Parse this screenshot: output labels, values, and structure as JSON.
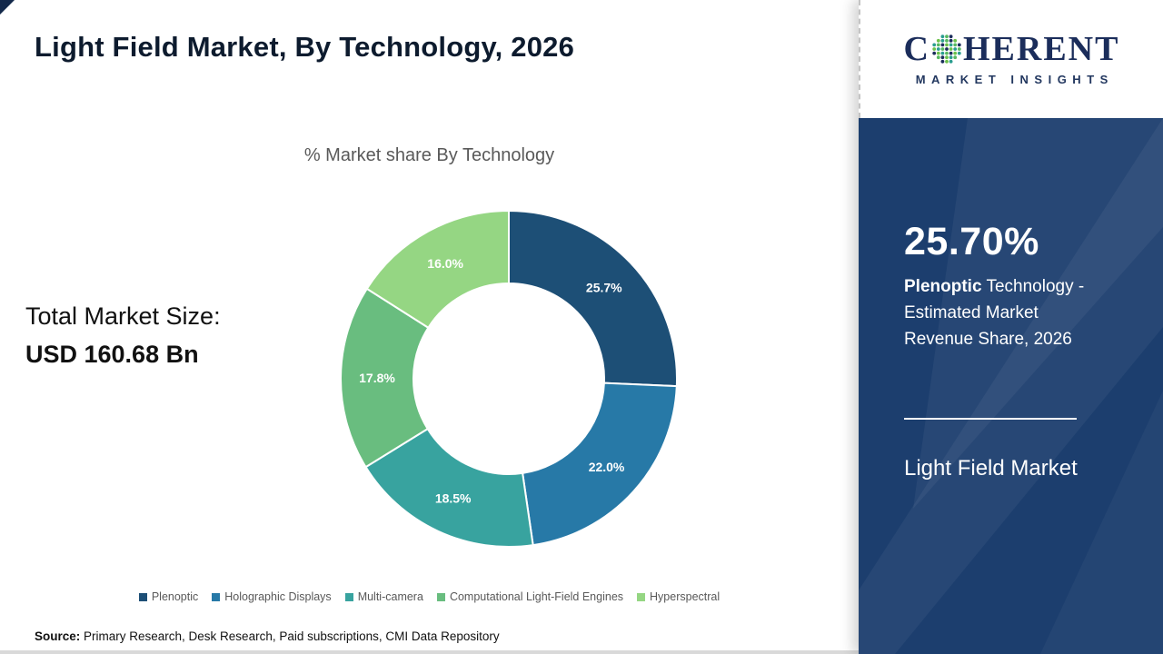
{
  "page": {
    "title": "Light Field Market, By Technology, 2026",
    "source": {
      "label": "Source:",
      "text": " Primary Research, Desk Research, Paid subscriptions, CMI Data Repository"
    }
  },
  "left_panel": {
    "total_market_label": "Total Market Size:",
    "total_market_value": "USD 160.68 Bn"
  },
  "chart_data": {
    "type": "pie",
    "subtype": "donut",
    "title": "% Market share By Technology",
    "categories": [
      "Plenoptic",
      "Holographic Displays",
      "Multi-camera",
      "Computational Light-Field Engines",
      "Hyperspectral"
    ],
    "values": [
      25.7,
      22.0,
      18.5,
      17.8,
      16.0
    ],
    "labels": [
      "25.7%",
      "22.0%",
      "18.5%",
      "17.8%",
      "16.0%"
    ],
    "colors": [
      "#1d4f76",
      "#2779a7",
      "#38a39f",
      "#69bd7f",
      "#95d683"
    ],
    "start_angle_deg": 0,
    "direction": "clockwise",
    "legend_position": "bottom"
  },
  "sidebar": {
    "logo": {
      "brand_first": "C",
      "brand_rest": "HERENT",
      "tagline": "MARKET INSIGHTS"
    },
    "stat_value": "25.70%",
    "stat_bold": "Plenoptic",
    "stat_text": " Technology - Estimated Market Revenue Share, 2026",
    "panel_title": "Light Field Market",
    "bg_color": "#1c3e6e",
    "logo_color": "#1b2d5b",
    "globe_dot_colors": [
      "#2a9d8f",
      "#57b960",
      "#1b2d5b",
      "#6cc24a"
    ]
  }
}
